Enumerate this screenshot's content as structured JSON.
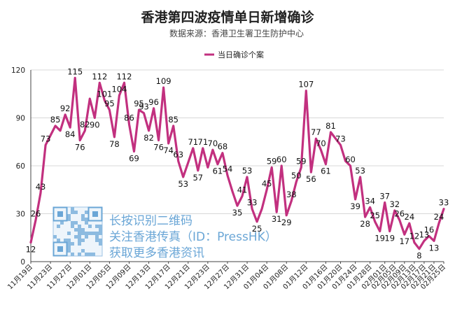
{
  "chart_data": {
    "type": "line",
    "title": "香港第四波疫情单日新增确诊",
    "subtitle": "数据来源：香港卫生署卫生防护中心",
    "xlabel": "",
    "ylabel": "",
    "ylim": [
      0,
      120
    ],
    "yticks": [
      0,
      30,
      60,
      90,
      120
    ],
    "grid": true,
    "legend_position": "top-center",
    "series": [
      {
        "name": "当日确诊个案",
        "color": "#c2307f",
        "values": [
          12,
          26,
          43,
          73,
          79,
          85,
          82,
          92,
          84,
          115,
          76,
          82,
          102,
          90,
          112,
          101,
          95,
          78,
          104,
          112,
          86,
          69,
          95,
          93,
          82,
          96,
          76,
          109,
          74,
          85,
          63,
          53,
          62,
          71,
          57,
          71,
          59,
          70,
          61,
          68,
          54,
          44,
          35,
          41,
          53,
          33,
          25,
          33,
          45,
          59,
          31,
          60,
          29,
          38,
          50,
          59,
          107,
          56,
          77,
          70,
          61,
          81,
          77,
          73,
          63,
          60,
          39,
          53,
          28,
          34,
          25,
          19,
          37,
          19,
          32,
          26,
          17,
          24,
          12,
          8,
          13,
          16,
          13,
          24,
          33
        ]
      }
    ],
    "point_labels": [
      {
        "i": 0,
        "text": "12"
      },
      {
        "i": 1,
        "text": "26"
      },
      {
        "i": 2,
        "text": "43"
      },
      {
        "i": 3,
        "text": "73"
      },
      {
        "i": 5,
        "text": "85"
      },
      {
        "i": 7,
        "text": "92"
      },
      {
        "i": 8,
        "text": "84"
      },
      {
        "i": 9,
        "text": "115"
      },
      {
        "i": 10,
        "text": "76"
      },
      {
        "i": 11,
        "text": "82"
      },
      {
        "i": 13,
        "text": "90"
      },
      {
        "i": 14,
        "text": "112"
      },
      {
        "i": 15,
        "text": "101"
      },
      {
        "i": 16,
        "text": "95"
      },
      {
        "i": 17,
        "text": "78"
      },
      {
        "i": 18,
        "text": "104"
      },
      {
        "i": 19,
        "text": "112"
      },
      {
        "i": 20,
        "text": "86"
      },
      {
        "i": 21,
        "text": "69"
      },
      {
        "i": 22,
        "text": "95"
      },
      {
        "i": 23,
        "text": "93"
      },
      {
        "i": 24,
        "text": "82"
      },
      {
        "i": 25,
        "text": "96"
      },
      {
        "i": 26,
        "text": "76"
      },
      {
        "i": 27,
        "text": "109"
      },
      {
        "i": 28,
        "text": "74"
      },
      {
        "i": 29,
        "text": "85"
      },
      {
        "i": 30,
        "text": "63"
      },
      {
        "i": 31,
        "text": "53"
      },
      {
        "i": 33,
        "text": "71"
      },
      {
        "i": 34,
        "text": "57"
      },
      {
        "i": 35,
        "text": "71"
      },
      {
        "i": 37,
        "text": "70"
      },
      {
        "i": 38,
        "text": "61"
      },
      {
        "i": 39,
        "text": "68"
      },
      {
        "i": 40,
        "text": "54"
      },
      {
        "i": 42,
        "text": "35"
      },
      {
        "i": 43,
        "text": "41"
      },
      {
        "i": 44,
        "text": "53"
      },
      {
        "i": 45,
        "text": "33"
      },
      {
        "i": 46,
        "text": "25"
      },
      {
        "i": 48,
        "text": "45"
      },
      {
        "i": 49,
        "text": "59"
      },
      {
        "i": 50,
        "text": "31"
      },
      {
        "i": 51,
        "text": "60"
      },
      {
        "i": 52,
        "text": "29"
      },
      {
        "i": 53,
        "text": "38"
      },
      {
        "i": 54,
        "text": "50"
      },
      {
        "i": 55,
        "text": "59"
      },
      {
        "i": 56,
        "text": "107"
      },
      {
        "i": 57,
        "text": "56"
      },
      {
        "i": 58,
        "text": "77"
      },
      {
        "i": 59,
        "text": "70"
      },
      {
        "i": 60,
        "text": "61"
      },
      {
        "i": 61,
        "text": "81"
      },
      {
        "i": 63,
        "text": "73"
      },
      {
        "i": 65,
        "text": "60"
      },
      {
        "i": 66,
        "text": "39"
      },
      {
        "i": 67,
        "text": "53"
      },
      {
        "i": 68,
        "text": "28"
      },
      {
        "i": 69,
        "text": "34"
      },
      {
        "i": 70,
        "text": "25"
      },
      {
        "i": 71,
        "text": "19"
      },
      {
        "i": 72,
        "text": "37"
      },
      {
        "i": 73,
        "text": "19"
      },
      {
        "i": 74,
        "text": "32"
      },
      {
        "i": 75,
        "text": "26"
      },
      {
        "i": 76,
        "text": "17"
      },
      {
        "i": 77,
        "text": "24"
      },
      {
        "i": 78,
        "text": "12"
      },
      {
        "i": 79,
        "text": "8"
      },
      {
        "i": 80,
        "text": "13"
      },
      {
        "i": 81,
        "text": "16"
      },
      {
        "i": 82,
        "text": "13"
      },
      {
        "i": 83,
        "text": "24"
      },
      {
        "i": 84,
        "text": "33"
      }
    ],
    "x_ticks": [
      {
        "i": 0,
        "label": "11月19日"
      },
      {
        "i": 4,
        "label": "11月23日"
      },
      {
        "i": 8,
        "label": "11月27日"
      },
      {
        "i": 12,
        "label": "12月01日"
      },
      {
        "i": 16,
        "label": "12月05日"
      },
      {
        "i": 20,
        "label": "12月09日"
      },
      {
        "i": 24,
        "label": "12月13日"
      },
      {
        "i": 28,
        "label": "12月17日"
      },
      {
        "i": 32,
        "label": "12月21日"
      },
      {
        "i": 36,
        "label": "12月23日"
      },
      {
        "i": 40,
        "label": "12月27日"
      },
      {
        "i": 44,
        "label": "12月31日"
      },
      {
        "i": 48,
        "label": "01月04日"
      },
      {
        "i": 52,
        "label": "01月08日"
      },
      {
        "i": 56,
        "label": "01月12日"
      },
      {
        "i": 60,
        "label": "01月16日"
      },
      {
        "i": 63,
        "label": "01月20日"
      },
      {
        "i": 66,
        "label": "01月24日"
      },
      {
        "i": 69,
        "label": "01月28日"
      },
      {
        "i": 72,
        "label": "02月01日"
      },
      {
        "i": 74,
        "label": "02月05日"
      },
      {
        "i": 76,
        "label": "02月09日"
      },
      {
        "i": 78,
        "label": "02月13日"
      },
      {
        "i": 80,
        "label": "02月17日"
      },
      {
        "i": 82,
        "label": "02月21日"
      },
      {
        "i": 84,
        "label": "02月25日"
      }
    ]
  },
  "watermark": {
    "lines": [
      "长按识别二维码",
      "关注香港传真（ID：PressHK）",
      "获取更多香港资讯"
    ],
    "qr_icon": "qr-code-icon",
    "color": "#6aa6d6"
  }
}
